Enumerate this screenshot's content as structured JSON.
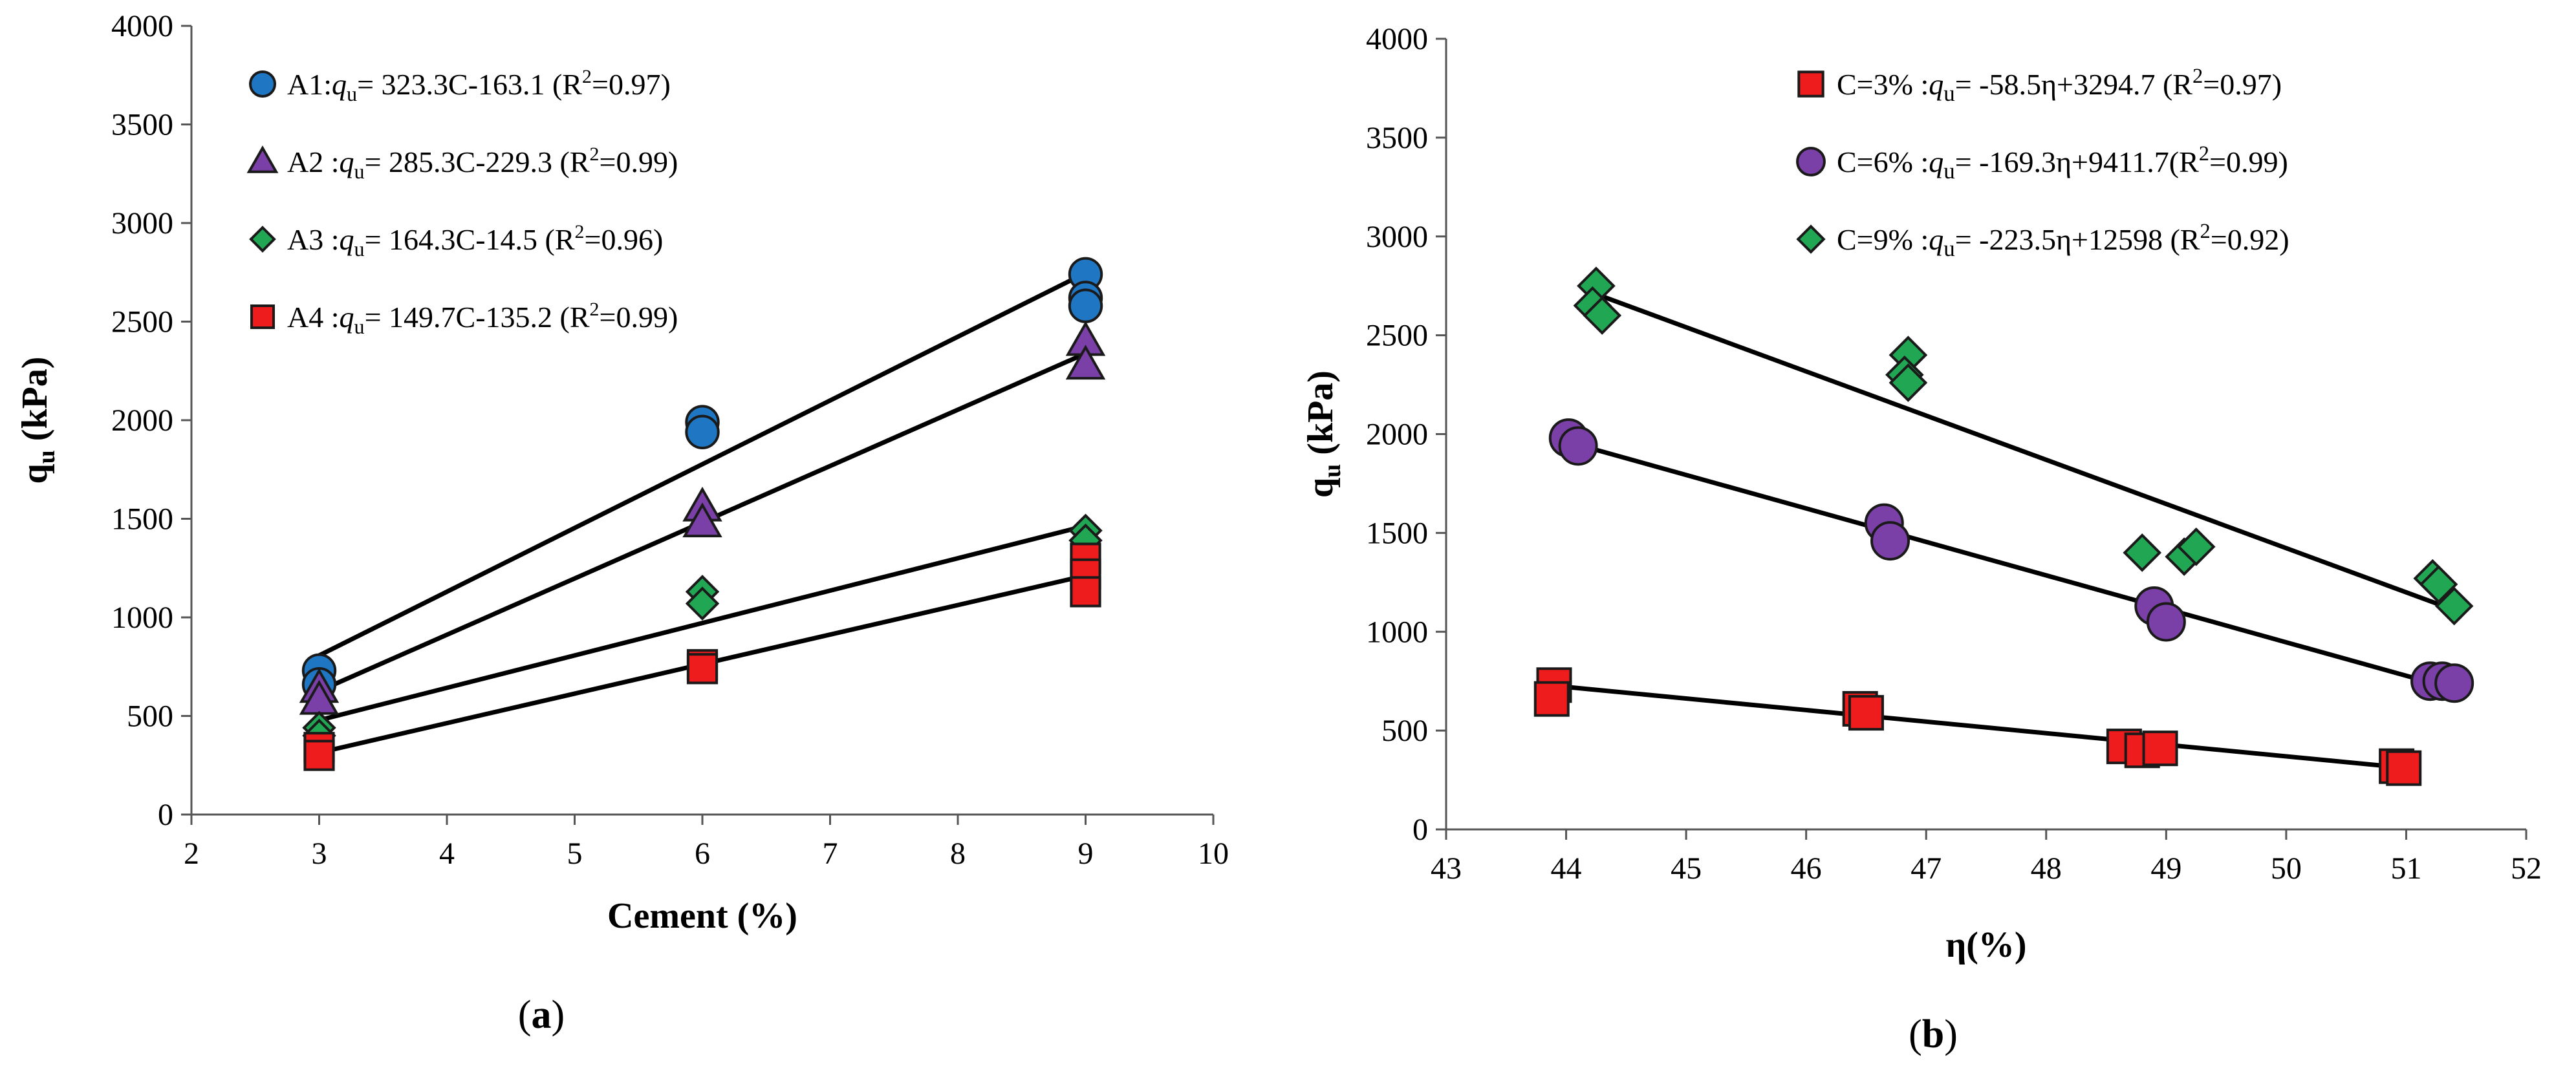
{
  "chart_data": [
    {
      "type": "scatter",
      "panel_label": "(a)",
      "panel_letter": "a",
      "xlabel": "Cement (%)",
      "ylabel": {
        "base": "q",
        "sub": "u",
        "unit": " (kPa)"
      },
      "xlim": [
        2,
        10
      ],
      "ylim": [
        0,
        4000
      ],
      "xticks": [
        2,
        3,
        4,
        5,
        6,
        7,
        8,
        9,
        10
      ],
      "yticks": [
        0,
        500,
        1000,
        1500,
        2000,
        2500,
        3000,
        3500,
        4000
      ],
      "legend_position": "top-left",
      "series": [
        {
          "name": "A1",
          "marker": "circle",
          "color": "#1f77c4",
          "legend": {
            "name": "A1:",
            "mid": "= 323.3C-163.1 (R",
            "tail": "=0.97)"
          },
          "points": [
            [
              3,
              730
            ],
            [
              3,
              660
            ],
            [
              6,
              1990
            ],
            [
              6,
              1940
            ],
            [
              9,
              2740
            ],
            [
              9,
              2620
            ],
            [
              9,
              2580
            ]
          ],
          "fit": {
            "slope": 323.3,
            "intercept": -163.1,
            "x_range": [
              3,
              9
            ]
          }
        },
        {
          "name": "A2",
          "marker": "triangle",
          "color": "#7b3fa8",
          "legend": {
            "name": "A2 :",
            "mid": "= 285.3C-229.3 (R",
            "tail": "=0.99)"
          },
          "points": [
            [
              3,
              640
            ],
            [
              3,
              580
            ],
            [
              6,
              1560
            ],
            [
              6,
              1480
            ],
            [
              9,
              2400
            ],
            [
              9,
              2280
            ]
          ],
          "fit": {
            "slope": 285.3,
            "intercept": -229.3,
            "x_range": [
              3,
              9
            ]
          }
        },
        {
          "name": "A3",
          "marker": "diamond",
          "color": "#21a653",
          "legend": {
            "name": "A3 :",
            "mid": "= 164.3C-14.5 (R",
            "tail": "=0.96)"
          },
          "points": [
            [
              3,
              440
            ],
            [
              3,
              400
            ],
            [
              6,
              1130
            ],
            [
              6,
              1070
            ],
            [
              9,
              1440
            ],
            [
              9,
              1390
            ]
          ],
          "fit": {
            "slope": 164.3,
            "intercept": -14.5,
            "x_range": [
              3,
              9
            ]
          }
        },
        {
          "name": "A4",
          "marker": "square",
          "color": "#ee1c1c",
          "legend": {
            "name": "A4 :",
            "mid": "= 149.7C-135.2 (R",
            "tail": "=0.99)"
          },
          "points": [
            [
              3,
              340
            ],
            [
              3,
              300
            ],
            [
              6,
              760
            ],
            [
              6,
              740
            ],
            [
              9,
              1300
            ],
            [
              9,
              1220
            ],
            [
              9,
              1130
            ]
          ],
          "fit": {
            "slope": 149.7,
            "intercept": -135.2,
            "x_range": [
              3,
              9
            ]
          }
        }
      ]
    },
    {
      "type": "scatter",
      "panel_label": "(b)",
      "panel_letter": "b",
      "xlabel": "η(%)",
      "ylabel": {
        "base": "q",
        "sub": "u",
        "unit": " (kPa)"
      },
      "xlim": [
        43,
        52
      ],
      "ylim": [
        0,
        4000
      ],
      "xticks": [
        43,
        44,
        45,
        46,
        47,
        48,
        49,
        50,
        51,
        52
      ],
      "yticks": [
        0,
        500,
        1000,
        1500,
        2000,
        2500,
        3000,
        3500,
        4000
      ],
      "legend_position": "top-right",
      "series": [
        {
          "name": "C=3%",
          "marker": "square",
          "color": "#ee1c1c",
          "legend": {
            "name": "C=3% :",
            "mid": "= -58.5η+3294.7 (R",
            "tail": "=0.97)"
          },
          "points": [
            [
              43.9,
              730
            ],
            [
              43.88,
              660
            ],
            [
              46.45,
              610
            ],
            [
              46.5,
              590
            ],
            [
              48.65,
              420
            ],
            [
              48.8,
              400
            ],
            [
              48.95,
              410
            ],
            [
              50.92,
              320
            ],
            [
              50.98,
              310
            ]
          ],
          "fit": {
            "slope": -58.5,
            "intercept": 3294.7,
            "x_range": [
              43.9,
              51.0
            ]
          }
        },
        {
          "name": "C=6%",
          "marker": "circle",
          "color": "#7b3fa8",
          "legend": {
            "name": "C=6% :",
            "mid": "= -169.3η+9411.7(R",
            "tail": "=0.99)"
          },
          "points": [
            [
              44.02,
              1980
            ],
            [
              44.1,
              1940
            ],
            [
              46.65,
              1550
            ],
            [
              46.7,
              1460
            ],
            [
              48.9,
              1130
            ],
            [
              49.0,
              1050
            ],
            [
              51.2,
              750
            ],
            [
              51.3,
              750
            ],
            [
              51.4,
              740
            ]
          ],
          "fit": {
            "slope": -169.3,
            "intercept": 9411.7,
            "x_range": [
              44.0,
              51.35
            ]
          }
        },
        {
          "name": "C=9%",
          "marker": "diamond",
          "color": "#21a653",
          "legend": {
            "name": "C=9% :",
            "mid": "= -223.5η+12598 (R",
            "tail": "=0.92)"
          },
          "points": [
            [
              44.25,
              2750
            ],
            [
              44.22,
              2650
            ],
            [
              44.3,
              2600
            ],
            [
              46.85,
              2400
            ],
            [
              46.82,
              2300
            ],
            [
              46.85,
              2260
            ],
            [
              48.8,
              1400
            ],
            [
              49.15,
              1380
            ],
            [
              49.25,
              1430
            ],
            [
              51.22,
              1270
            ],
            [
              51.27,
              1240
            ],
            [
              51.4,
              1130
            ]
          ],
          "fit": {
            "slope": -223.5,
            "intercept": 12598,
            "x_range": [
              44.2,
              51.4
            ]
          }
        }
      ]
    }
  ]
}
